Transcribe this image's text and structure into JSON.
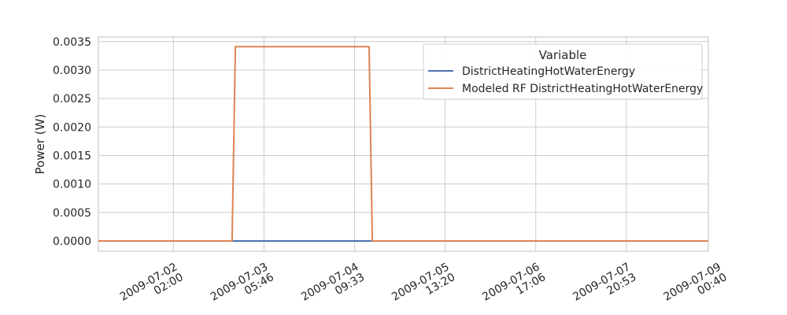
{
  "chart_data": {
    "type": "line",
    "title": "",
    "xlabel": "",
    "ylabel": "Power (W)",
    "x_axis": "datetime",
    "xlim": [
      "2009-07-01T03:00",
      "2009-07-08T22:00"
    ],
    "ylim": [
      -0.00018,
      0.00358
    ],
    "y_ticks": [
      0.0,
      0.0005,
      0.001,
      0.0015,
      0.002,
      0.0025,
      0.003,
      0.0035
    ],
    "y_tick_labels": [
      "0.0000",
      "0.0005",
      "0.0010",
      "0.0015",
      "0.0020",
      "0.0025",
      "0.0030",
      "0.0035"
    ],
    "x_ticks": [
      "2009-07-02T02:00",
      "2009-07-03T05:46",
      "2009-07-04T09:33",
      "2009-07-05T13:20",
      "2009-07-06T17:06",
      "2009-07-07T20:53",
      "2009-07-09T00:40"
    ],
    "x_tick_labels": [
      [
        "2009-07-02",
        "02:00"
      ],
      [
        "2009-07-03",
        "05:46"
      ],
      [
        "2009-07-04",
        "09:33"
      ],
      [
        "2009-07-05",
        "13:20"
      ],
      [
        "2009-07-06",
        "17:06"
      ],
      [
        "2009-07-07",
        "20:53"
      ],
      [
        "2009-07-09",
        "00:40"
      ]
    ],
    "grid": true,
    "legend": {
      "title": "Variable",
      "placement": "top-right"
    },
    "series": [
      {
        "name": "DistrictHeatingHotWaterEnergy",
        "color": "#4c72b0",
        "x": [
          "2009-07-01T03:00",
          "2009-07-08T22:00"
        ],
        "y": [
          0.0,
          0.0
        ]
      },
      {
        "name": "Modeled RF DistrictHeatingHotWaterEnergy",
        "color": "#dd8452",
        "x": [
          "2009-07-01T03:00",
          "2009-07-02T20:00",
          "2009-07-02T21:00",
          "2009-07-04T14:00",
          "2009-07-04T15:00",
          "2009-07-08T22:00"
        ],
        "y": [
          0.0,
          0.0,
          0.00341,
          0.00341,
          0.0,
          0.0
        ]
      }
    ]
  }
}
